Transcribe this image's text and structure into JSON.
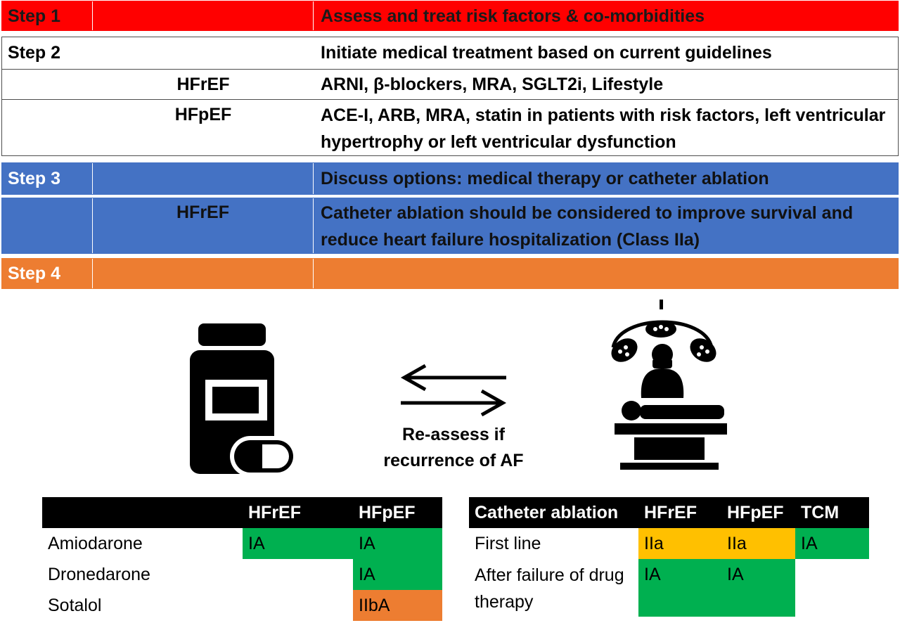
{
  "steps": [
    {
      "label": "Step 1",
      "sub": "",
      "text": "Assess and treat risk factors & co-morbidities"
    },
    {
      "label": "Step 2",
      "sub": "",
      "text": "Initiate medical treatment based on current guidelines"
    },
    {
      "label": "",
      "sub": "HFrEF",
      "text": "ARNI, β-blockers, MRA, SGLT2i, Lifestyle"
    },
    {
      "label": "",
      "sub": "HFpEF",
      "text": "ACE-I, ARB, MRA, statin in patients with risk factors, left ventricular hypertrophy or left ventricular dysfunction"
    },
    {
      "label": "Step 3",
      "sub": "",
      "text": "Discuss options: medical therapy or catheter ablation"
    },
    {
      "label": "",
      "sub": "HFrEF",
      "text": "Catheter ablation should be considered to improve survival and reduce heart failure hospitalization (Class IIa)"
    },
    {
      "label": "Step 4",
      "sub": "",
      "text": ""
    }
  ],
  "middle": {
    "reassess": "Re-assess if recurrence of AF"
  },
  "icons": {
    "left": "medicine-bottle-icon",
    "right": "surgery-table-icon",
    "arrows": "swap-arrows-icon"
  },
  "drug_table": {
    "headers": [
      "",
      "HFrEF",
      "HFpEF"
    ],
    "rows": [
      {
        "name": "Amiodarone",
        "hfref": "IA",
        "hfpef": "IA"
      },
      {
        "name": "Dronedarone",
        "hfref": "",
        "hfpef": "IA"
      },
      {
        "name": "Sotalol",
        "hfref": "",
        "hfpef": "IIbA"
      }
    ]
  },
  "ablation_table": {
    "headers": [
      "Catheter ablation",
      "HFrEF",
      "HFpEF",
      "TCM"
    ],
    "rows": [
      {
        "name": "First line",
        "hfref": "IIa",
        "hfpef": "IIa",
        "tcm": "IA"
      },
      {
        "name": "After failure of drug therapy",
        "hfref": "IA",
        "hfpef": "IA",
        "tcm": ""
      }
    ]
  },
  "colors": {
    "step1": "#ff0000",
    "step3": "#4472c4",
    "step4": "#ed7d31",
    "green": "#00b050",
    "amber": "#ffc000",
    "orange": "#ed7d31"
  }
}
